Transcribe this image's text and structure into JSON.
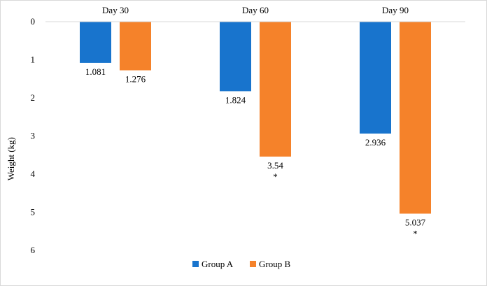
{
  "chart_data": {
    "type": "bar",
    "orientation": "vertical-inverted",
    "categories": [
      "Day 30",
      "Day 60",
      "Day 90"
    ],
    "series": [
      {
        "name": "Group A",
        "color": "#1874cd",
        "values": [
          1.081,
          1.824,
          2.936
        ],
        "labels": [
          "1.081",
          "1.824",
          "2.936"
        ],
        "markers": [
          "",
          "",
          ""
        ]
      },
      {
        "name": "Group B",
        "color": "#f5822a",
        "values": [
          1.276,
          3.54,
          5.037
        ],
        "labels": [
          "1.276",
          "3.54",
          "5.037"
        ],
        "markers": [
          "",
          "*",
          "*"
        ]
      }
    ],
    "ylabel": "Weight (kg)",
    "ylim": [
      0,
      6
    ],
    "yticks": [
      "0",
      "1",
      "2",
      "3",
      "4",
      "5",
      "6"
    ],
    "category_axis_position": "top",
    "grid": false,
    "legend_position": "bottom"
  }
}
